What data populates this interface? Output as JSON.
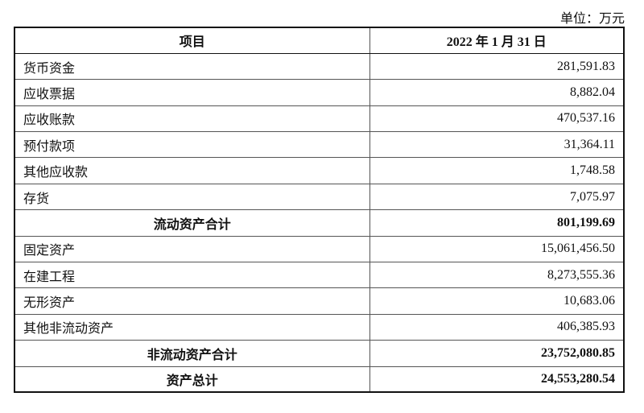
{
  "unit_label": "单位：万元",
  "table": {
    "headers": [
      "项目",
      "2022 年 1 月 31 日"
    ],
    "rows": [
      {
        "item": "货币资金",
        "value": "281,591.83",
        "total": false
      },
      {
        "item": "应收票据",
        "value": "8,882.04",
        "total": false
      },
      {
        "item": "应收账款",
        "value": "470,537.16",
        "total": false
      },
      {
        "item": "预付款项",
        "value": "31,364.11",
        "total": false
      },
      {
        "item": "其他应收款",
        "value": "1,748.58",
        "total": false
      },
      {
        "item": "存货",
        "value": "7,075.97",
        "total": false
      },
      {
        "item": "流动资产合计",
        "value": "801,199.69",
        "total": true
      },
      {
        "item": "固定资产",
        "value": "15,061,456.50",
        "total": false
      },
      {
        "item": "在建工程",
        "value": "8,273,555.36",
        "total": false
      },
      {
        "item": "无形资产",
        "value": "10,683.06",
        "total": false
      },
      {
        "item": "其他非流动资产",
        "value": "406,385.93",
        "total": false
      },
      {
        "item": "非流动资产合计",
        "value": "23,752,080.85",
        "total": true
      },
      {
        "item": "资产总计",
        "value": "24,553,280.54",
        "total": true
      }
    ]
  }
}
